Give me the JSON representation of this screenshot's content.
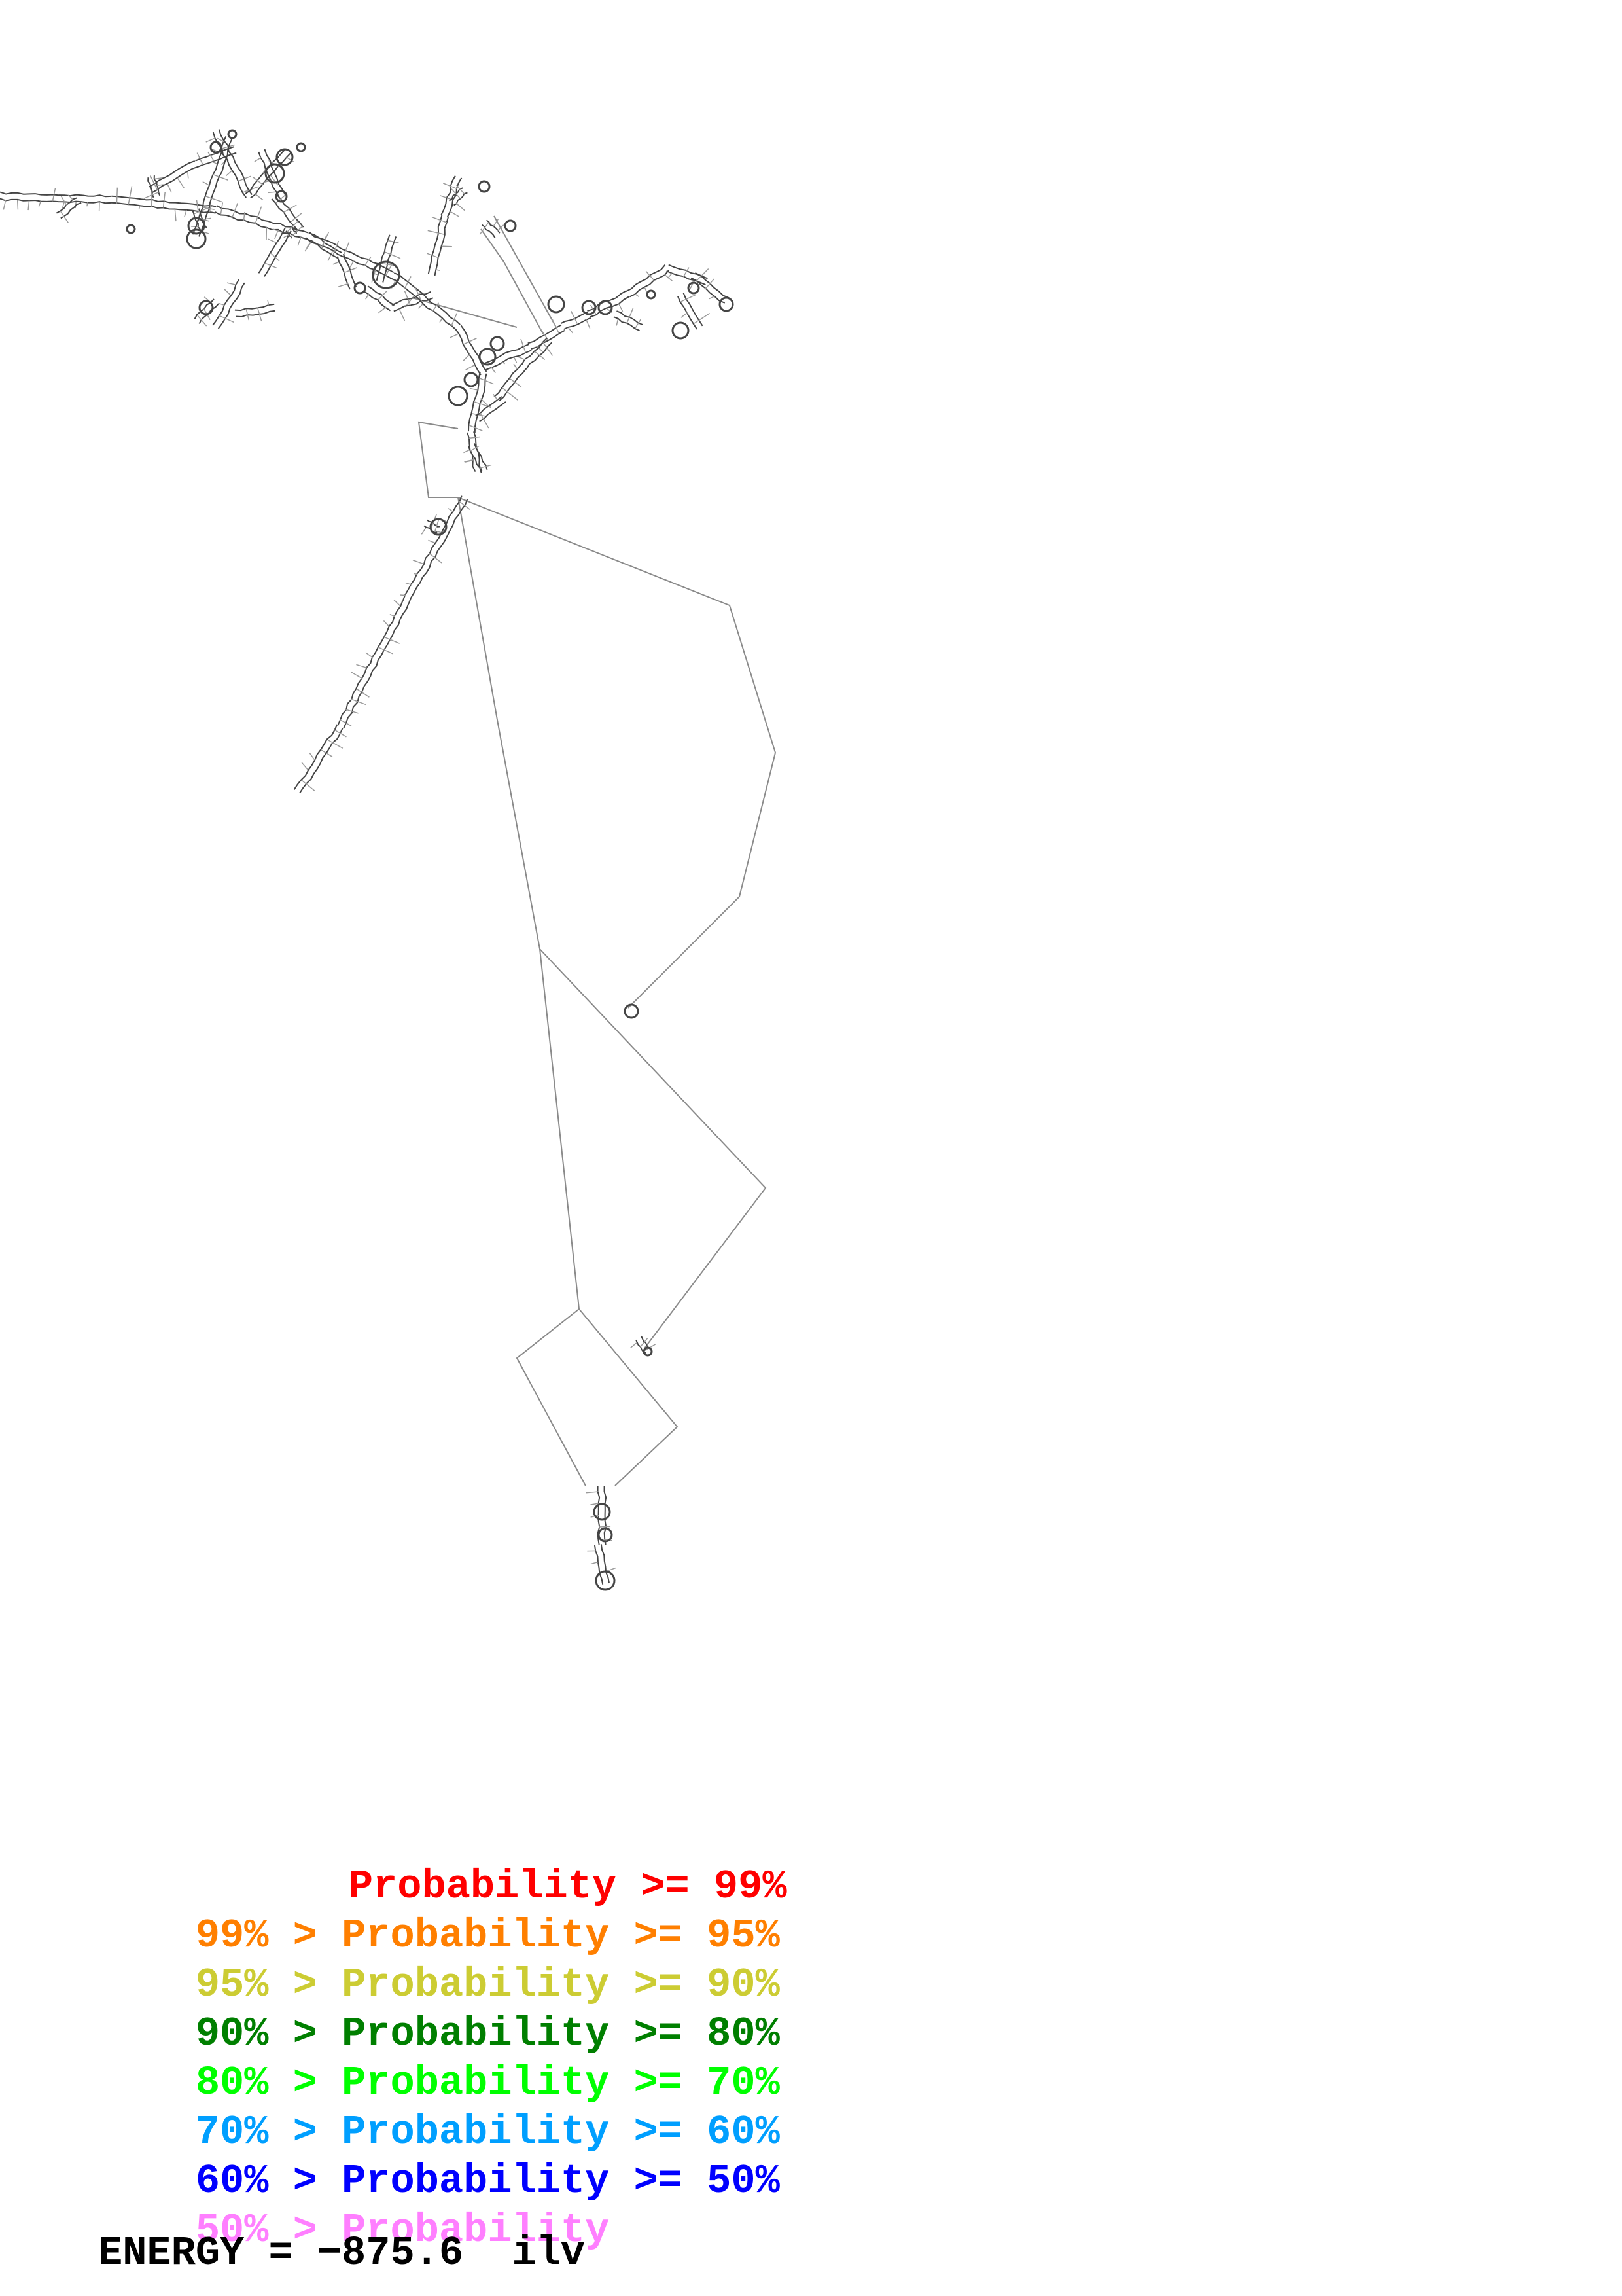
{
  "diagram": {
    "colors": {
      "backbone": "#8a8a8a",
      "structure": "#444444",
      "tick": "#9a9a9a"
    }
  },
  "legend": {
    "rows": [
      {
        "prefix": "",
        "label": "Probability >= 99%",
        "color": "#ff0000"
      },
      {
        "prefix": "99% > ",
        "label": "Probability >= 95%",
        "color": "#ff7f00"
      },
      {
        "prefix": "95% > ",
        "label": "Probability >= 90%",
        "color": "#cccc33"
      },
      {
        "prefix": "90% > ",
        "label": "Probability >= 80%",
        "color": "#007f00"
      },
      {
        "prefix": "80% > ",
        "label": "Probability >= 70%",
        "color": "#00ff00"
      },
      {
        "prefix": "70% > ",
        "label": "Probability >= 60%",
        "color": "#009fff"
      },
      {
        "prefix": "60% > ",
        "label": "Probability >= 50%",
        "color": "#0000ff"
      },
      {
        "prefix": "50% > ",
        "label": "Probability",
        "color": "#ff7fff"
      }
    ]
  },
  "energy": {
    "text": "ENERGY = −875.6  ilv"
  }
}
